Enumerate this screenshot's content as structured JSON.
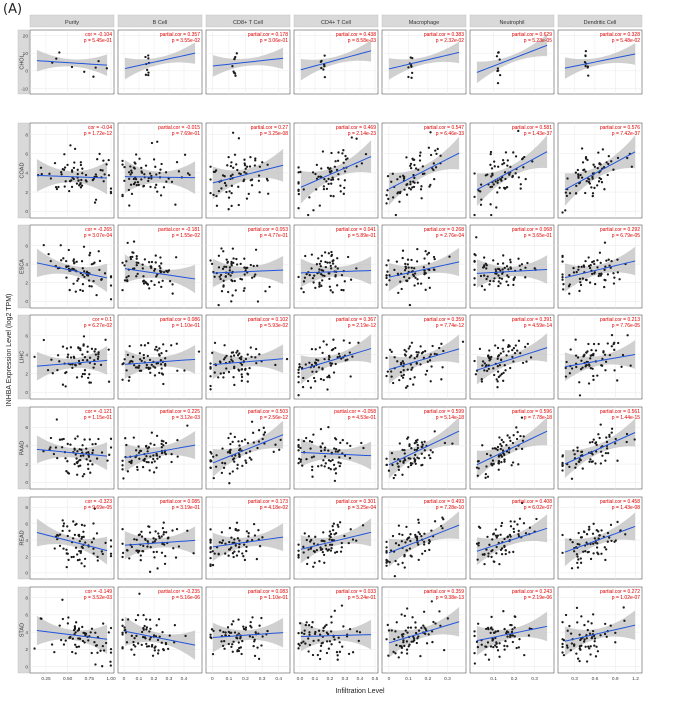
{
  "figure_label": "(A)",
  "chart_data": {
    "type": "scatter",
    "ylabel": "INHBA Expression Level (log2 TPM)",
    "xlabel": "Infiltration Level",
    "columns": [
      {
        "name": "Purity",
        "xticks": [
          "0.25",
          "0.50",
          "0.75",
          "1.00"
        ],
        "xlim": [
          0.1,
          1.0
        ],
        "tick_values": [
          0.25,
          0.5,
          0.75,
          1.0
        ]
      },
      {
        "name": "B Cell",
        "xticks": [
          "0",
          "0.1",
          "0.2",
          "0.3",
          "0.4"
        ],
        "xlim": [
          -0.02,
          0.5
        ],
        "tick_values": [
          0,
          0.1,
          0.2,
          0.3,
          0.4
        ]
      },
      {
        "name": "CD8+ T Cell",
        "xticks": [
          "0",
          "0.1",
          "0.2",
          "0.3",
          "0.4"
        ],
        "xlim": [
          -0.02,
          0.45
        ],
        "tick_values": [
          0,
          0.1,
          0.2,
          0.3,
          0.4
        ]
      },
      {
        "name": "CD4+ T Cell",
        "xticks": [
          "0.0",
          "0.1",
          "0.2",
          "0.3",
          "0.4",
          "0.5"
        ],
        "xlim": [
          -0.02,
          0.5
        ],
        "tick_values": [
          0,
          0.1,
          0.2,
          0.3,
          0.4,
          0.5
        ]
      },
      {
        "name": "Macrophage",
        "xticks": [
          "0",
          "0.1",
          "0.2",
          "0.3"
        ],
        "xlim": [
          -0.02,
          0.38
        ],
        "tick_values": [
          0,
          0.1,
          0.2,
          0.3
        ]
      },
      {
        "name": "Neutrophil",
        "xticks": [
          "0.1",
          "0.2",
          "0.3"
        ],
        "xlim": [
          0.0,
          0.38
        ],
        "tick_values": [
          0.1,
          0.2,
          0.3
        ]
      },
      {
        "name": "Dendritic Cell",
        "xticks": [
          "0.3",
          "0.6",
          "0.9",
          "1.2"
        ],
        "xlim": [
          0.1,
          1.25
        ],
        "tick_values": [
          0.3,
          0.6,
          0.9,
          1.2
        ]
      }
    ],
    "rows": [
      {
        "name": "CHOL",
        "yticks": [
          "-10",
          "0",
          "10",
          "20"
        ],
        "ylim": [
          -12,
          22
        ],
        "tick_values": [
          -10,
          0,
          10,
          20
        ],
        "stats": [
          [
            "cor = -0.104",
            "p = 5.45e-01"
          ],
          [
            "partial.cor = 0.357",
            "p = 3.55e-02"
          ],
          [
            "partial.cor = 0.178",
            "p = 3.06e-01"
          ],
          [
            "partial.cor = 0.438",
            "p = 8.58e-03"
          ],
          [
            "partial.cor = 0.383",
            "p = 2.32e-02"
          ],
          [
            "partial.cor = 0.629",
            "p = 5.23e-05"
          ],
          [
            "partial.cor = 0.328",
            "p = 5.48e-02"
          ]
        ]
      },
      {
        "name": "COAD",
        "yticks": [
          "0",
          "2",
          "4",
          "6",
          "8"
        ],
        "ylim": [
          -0.5,
          9
        ],
        "tick_values": [
          0,
          2,
          4,
          6,
          8
        ],
        "stats": [
          [
            "cor = -0.04",
            "p = 1.72e-12"
          ],
          [
            "partial.cor = -0.015",
            "p = 7.69e-01"
          ],
          [
            "partial.cor = 0.27",
            "p = 3.25e-08"
          ],
          [
            "partial.cor = 0.469",
            "p = 2.14e-23"
          ],
          [
            "partial.cor = 0.547",
            "p = 6.46e-33"
          ],
          [
            "partial.cor = 0.581",
            "p = 1.43e-37"
          ],
          [
            "partial.cor = 0.576",
            "p = 7.42e-37"
          ]
        ]
      },
      {
        "name": "ESCA",
        "yticks": [
          "0",
          "2",
          "4",
          "6"
        ],
        "ylim": [
          -0.5,
          8
        ],
        "tick_values": [
          0,
          2,
          4,
          6
        ],
        "stats": [
          [
            "cor = -0.265",
            "p = 3.07e-04"
          ],
          [
            "partial.cor = -0.181",
            "p = 1.55e-02"
          ],
          [
            "partial.cor = 0.053",
            "p = 4.77e-01"
          ],
          [
            "partial.cor = 0.041",
            "p = 5.89e-01"
          ],
          [
            "partial.cor = 0.268",
            "p = 2.76e-04"
          ],
          [
            "partial.cor = 0.068",
            "p = 3.65e-01"
          ],
          [
            "partial.cor = 0.292",
            "p = 6.79e-05"
          ]
        ]
      },
      {
        "name": "LIHC",
        "yticks": [
          "0",
          "2",
          "4",
          "6"
        ],
        "ylim": [
          -0.5,
          8
        ],
        "tick_values": [
          0,
          2,
          4,
          6
        ],
        "stats": [
          [
            "cor = 0.1",
            "p = 6.27e-02"
          ],
          [
            "partial.cor = 0.086",
            "p = 1.10e-01"
          ],
          [
            "partial.cor = 0.102",
            "p = 5.93e-02"
          ],
          [
            "partial.cor = 0.367",
            "p = 2.19e-12"
          ],
          [
            "partial.cor = 0.359",
            "p = 7.74e-12"
          ],
          [
            "partial.cor = 0.391",
            "p = 4.59e-14"
          ],
          [
            "partial.cor = 0.213",
            "p = 7.76e-05"
          ]
        ]
      },
      {
        "name": "PAAD",
        "yticks": [
          "0",
          "2",
          "4",
          "6"
        ],
        "ylim": [
          -0.5,
          8
        ],
        "tick_values": [
          0,
          2,
          4,
          6
        ],
        "stats": [
          [
            "cor = -0.121",
            "p = 1.15e-01"
          ],
          [
            "partial.cor = 0.225",
            "p = 3.12e-03"
          ],
          [
            "partial.cor = 0.503",
            "p = 2.56e-12"
          ],
          [
            "partial.cor = -0.058",
            "p = 4.53e-01"
          ],
          [
            "partial.cor = 0.599",
            "p = 5.14e-18"
          ],
          [
            "partial.cor = 0.596",
            "p = 7.78e-18"
          ],
          [
            "partial.cor = 0.561",
            "p = 1.44e-15"
          ]
        ]
      },
      {
        "name": "READ",
        "yticks": [
          "0",
          "2",
          "4",
          "6",
          "8"
        ],
        "ylim": [
          -0.5,
          9
        ],
        "tick_values": [
          0,
          2,
          4,
          6,
          8
        ],
        "stats": [
          [
            "cor = -0.323",
            "p = 9.69e-05"
          ],
          [
            "partial.cor = 0.085",
            "p = 3.19e-01"
          ],
          [
            "partial.cor = 0.173",
            "p = 4.18e-02"
          ],
          [
            "partial.cor = 0.301",
            "p = 3.25e-04"
          ],
          [
            "partial.cor = 0.493",
            "p = 7.28e-10"
          ],
          [
            "partial.cor = 0.408",
            "p = 6.02e-07"
          ],
          [
            "partial.cor = 0.458",
            "p = 1.43e-08"
          ]
        ]
      },
      {
        "name": "STAD",
        "yticks": [
          "0",
          "2",
          "4",
          "6",
          "8"
        ],
        "ylim": [
          -0.5,
          9
        ],
        "tick_values": [
          0,
          2,
          4,
          6,
          8
        ],
        "stats": [
          [
            "cor = -0.149",
            "p = 3.52e-03"
          ],
          [
            "partial.cor = -0.235",
            "p = 5.16e-06"
          ],
          [
            "partial.cor = 0.083",
            "p = 1.10e-01"
          ],
          [
            "partial.cor = 0.033",
            "p = 5.24e-01"
          ],
          [
            "partial.cor = 0.359",
            "p = 9.38e-13"
          ],
          [
            "partial.cor = 0.243",
            "p = 2.19e-06"
          ],
          [
            "partial.cor = 0.272",
            "p = 1.02e-07"
          ]
        ]
      }
    ],
    "colors": {
      "points": "#1a1a1a",
      "trend": "#2255dd",
      "band": "#bcbcbc",
      "stats": "#e00000",
      "strip": "#d9d9d9",
      "panel_bg": "#ffffff",
      "grid": "#e9e9e9",
      "frame": "#555555"
    },
    "grid": true
  }
}
